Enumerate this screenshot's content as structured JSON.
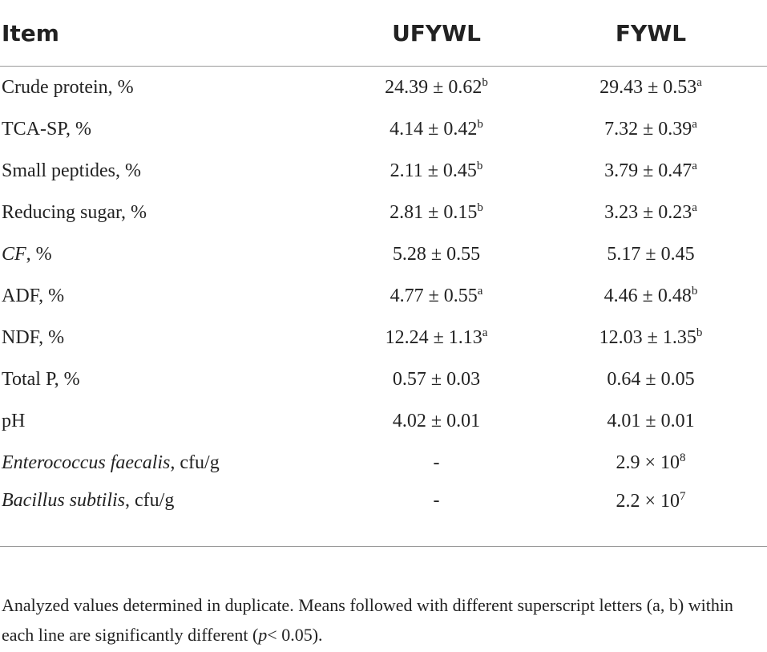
{
  "table": {
    "header": [
      "Item",
      "UFYWL",
      "FYWL"
    ],
    "rows": [
      [
        [
          "Crude protein, %"
        ],
        [
          "24.39 ± 0.62",
          {
            "text": "b",
            "style": "sup"
          }
        ],
        [
          "29.43 ± 0.53",
          {
            "text": "a",
            "style": "sup"
          }
        ]
      ],
      [
        [
          "TCA-SP, %"
        ],
        [
          "4.14 ± 0.42",
          {
            "text": "b",
            "style": "sup"
          }
        ],
        [
          "7.32 ± 0.39",
          {
            "text": "a",
            "style": "sup"
          }
        ]
      ],
      [
        [
          "Small peptides, %"
        ],
        [
          "2.11 ± 0.45",
          {
            "text": "b",
            "style": "sup"
          }
        ],
        [
          "3.79 ± 0.47",
          {
            "text": "a",
            "style": "sup"
          }
        ]
      ],
      [
        [
          "Reducing sugar, %"
        ],
        [
          "2.81 ± 0.15",
          {
            "text": "b",
            "style": "sup"
          }
        ],
        [
          "3.23 ± 0.23",
          {
            "text": "a",
            "style": "sup"
          }
        ]
      ],
      [
        [
          {
            "text": "CF",
            "style": "italic"
          },
          ", %"
        ],
        [
          "5.28 ± 0.55"
        ],
        [
          "5.17 ± 0.45"
        ]
      ],
      [
        [
          "ADF, %"
        ],
        [
          "4.77 ± 0.55",
          {
            "text": "a",
            "style": "sup"
          }
        ],
        [
          "4.46 ± 0.48",
          {
            "text": "b",
            "style": "sup"
          }
        ]
      ],
      [
        [
          "NDF, %"
        ],
        [
          "12.24 ± 1.13",
          {
            "text": "a",
            "style": "sup"
          }
        ],
        [
          "12.03 ± 1.35",
          {
            "text": "b",
            "style": "sup"
          }
        ]
      ],
      [
        [
          "Total P, %"
        ],
        [
          "0.57 ± 0.03"
        ],
        [
          "0.64 ± 0.05"
        ]
      ],
      [
        [
          "pH"
        ],
        [
          "4.02 ± 0.01"
        ],
        [
          "4.01 ± 0.01"
        ]
      ],
      [
        [
          {
            "text": "Enterococcus faecalis",
            "style": "italic"
          },
          ", cfu/g"
        ],
        [
          "-"
        ],
        [
          "2.9 × 10",
          {
            "text": "8",
            "style": "sup"
          }
        ]
      ],
      [
        [
          {
            "text": "Bacillus subtilis",
            "style": "italic"
          },
          ", cfu/g"
        ],
        [
          "-"
        ],
        [
          "2.2 × 10",
          {
            "text": "7",
            "style": "sup"
          }
        ]
      ]
    ]
  },
  "footnote": [
    "Analyzed values determined in duplicate. Means followed with different superscript letters (a, b) within each line are significantly different (",
    {
      "text": "p",
      "style": "italic"
    },
    "< 0.05)."
  ]
}
